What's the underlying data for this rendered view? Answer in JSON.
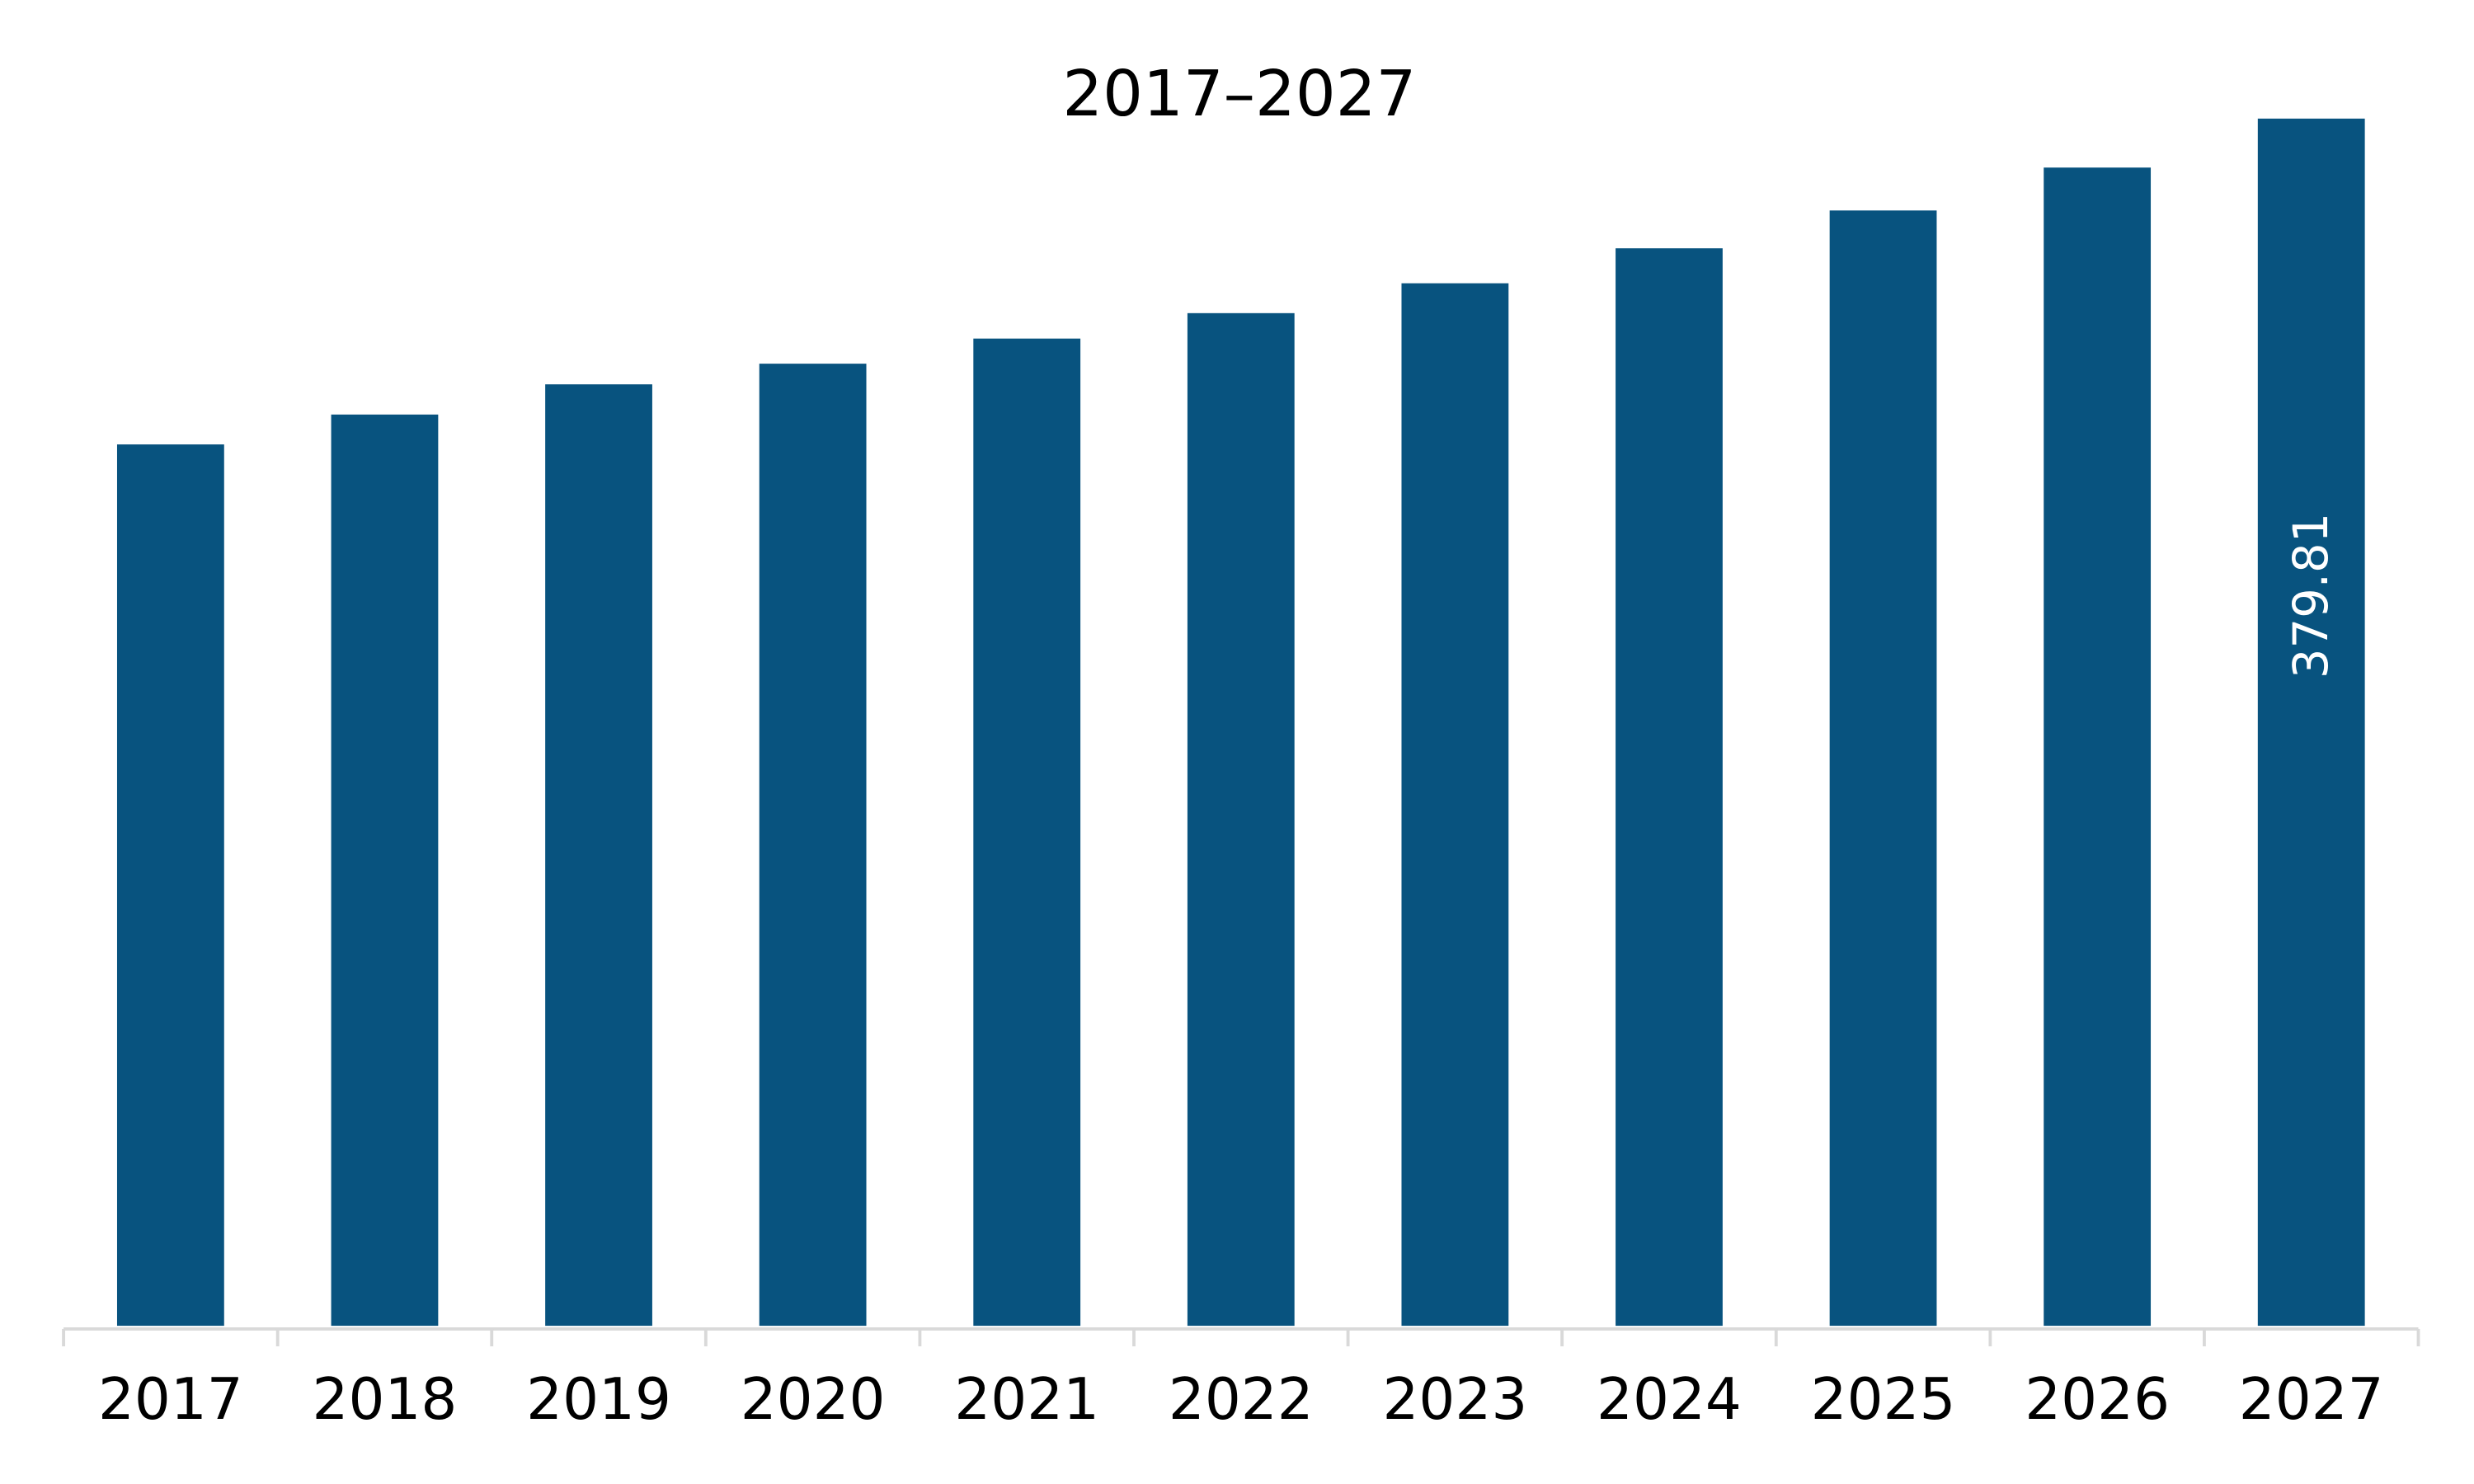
{
  "chart_data": {
    "type": "bar",
    "title": "2017–2027",
    "categories": [
      "2017",
      "2018",
      "2019",
      "2020",
      "2021",
      "2022",
      "2023",
      "2024",
      "2025",
      "2026",
      "2027"
    ],
    "values": [
      277.3,
      286.7,
      296.2,
      302.7,
      310.6,
      318.6,
      328.0,
      339.0,
      350.9,
      364.4,
      379.81
    ],
    "value_labels": [
      null,
      null,
      null,
      null,
      null,
      null,
      null,
      null,
      null,
      null,
      "379.81"
    ],
    "color": "#08537f",
    "ylim": [
      0,
      400
    ]
  }
}
